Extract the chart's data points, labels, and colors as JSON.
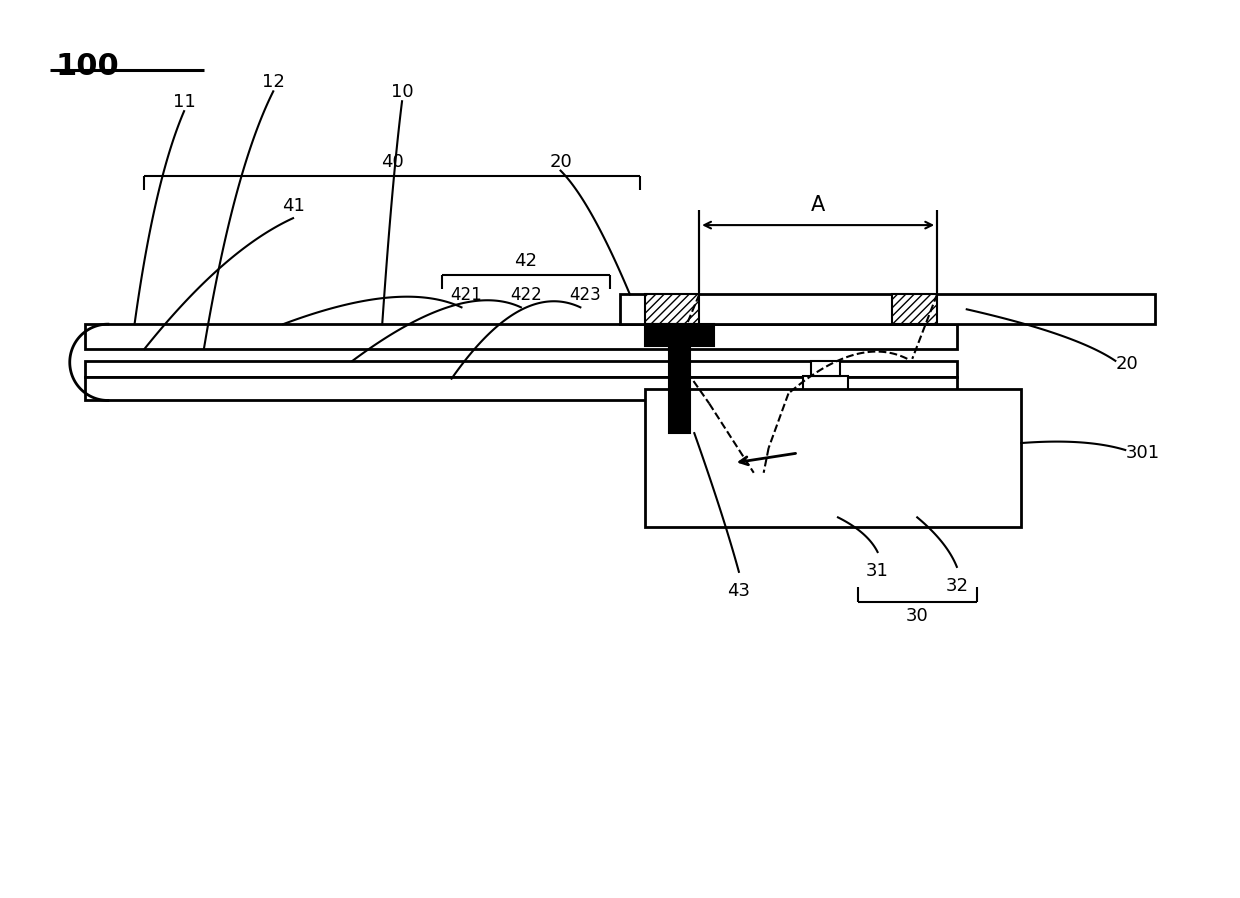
{
  "bg_color": "#ffffff",
  "line_color": "#000000",
  "title": "100",
  "fig_width": 12.4,
  "fig_height": 8.98,
  "dpi": 100
}
